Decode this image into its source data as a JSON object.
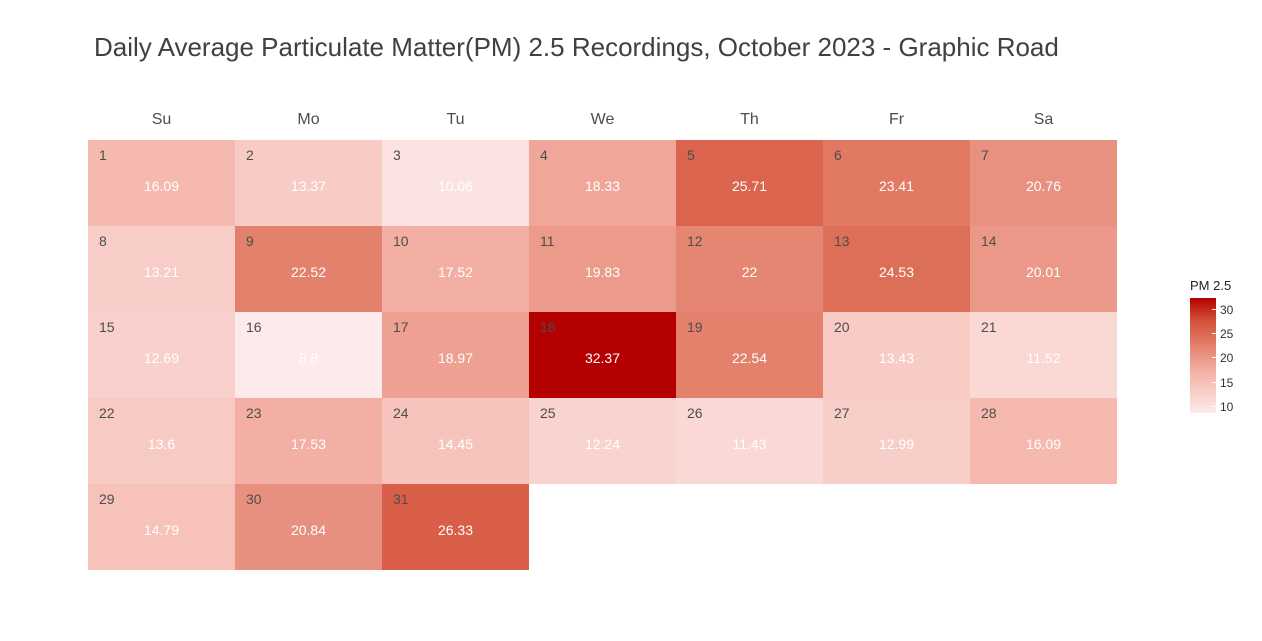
{
  "chart_data": {
    "type": "heatmap",
    "title": "Daily Average Particulate Matter(PM) 2.5 Recordings, October 2023 - Graphic Road",
    "weekdays": [
      "Su",
      "Mo",
      "Tu",
      "We",
      "Th",
      "Fr",
      "Sa"
    ],
    "first_weekday_index": 0,
    "days": [
      1,
      2,
      3,
      4,
      5,
      6,
      7,
      8,
      9,
      10,
      11,
      12,
      13,
      14,
      15,
      16,
      17,
      18,
      19,
      20,
      21,
      22,
      23,
      24,
      25,
      26,
      27,
      28,
      29,
      30,
      31
    ],
    "values": [
      16.09,
      13.37,
      10.06,
      18.33,
      25.71,
      23.41,
      20.76,
      13.21,
      22.52,
      17.52,
      19.83,
      22,
      24.53,
      20.01,
      12.69,
      8.8,
      18.97,
      32.37,
      22.54,
      13.43,
      11.52,
      13.6,
      17.53,
      14.45,
      12.24,
      11.43,
      12.99,
      16.09,
      14.79,
      20.84,
      26.33
    ],
    "legend": {
      "title": "PM 2.5",
      "ticks": [
        10,
        15,
        20,
        25,
        30
      ],
      "range": [
        8.8,
        32.37
      ],
      "color_low": "#fdeaea",
      "color_high": "#b40000"
    }
  }
}
